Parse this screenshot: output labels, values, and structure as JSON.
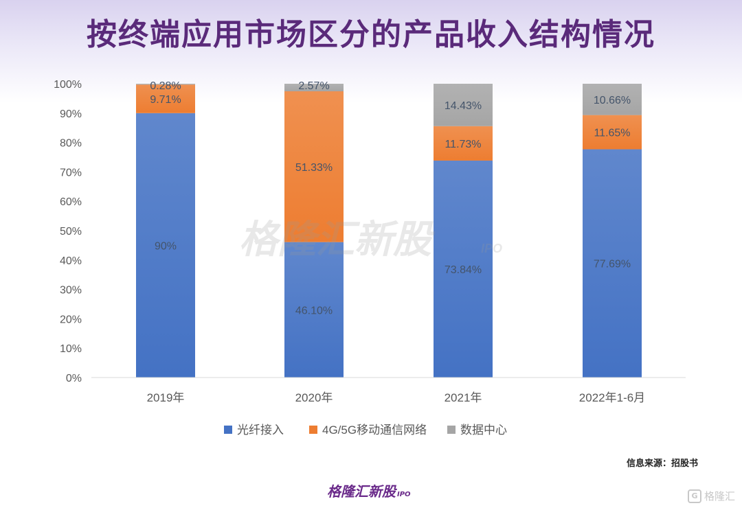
{
  "title": "按终端应用市场区分的产品收入结构情况",
  "source_text": "信息来源：招股书",
  "brand_text": "格隆汇新股",
  "brand_sub": "IPO",
  "corner_logo_text": "格隆汇",
  "corner_logo_badge": "G",
  "chart_data": {
    "type": "bar",
    "stacked": true,
    "categories": [
      "2019年",
      "2020年",
      "2021年",
      "2022年1-6月"
    ],
    "series": [
      {
        "name": "光纤接入",
        "color": "#4472c4",
        "values": [
          90,
          46.1,
          73.84,
          77.69
        ],
        "labels": [
          "90%",
          "46.10%",
          "73.84%",
          "77.69%"
        ]
      },
      {
        "name": "4G/5G移动通信网络",
        "color": "#ed7d31",
        "values": [
          9.71,
          51.33,
          11.73,
          11.65
        ],
        "labels": [
          "9.71%",
          "51.33%",
          "11.73%",
          "11.65%"
        ]
      },
      {
        "name": "数据中心",
        "color": "#a5a5a5",
        "values": [
          0.28,
          2.57,
          14.43,
          10.66
        ],
        "labels": [
          "0.28%",
          "2.57%",
          "14.43%",
          "10.66%"
        ]
      }
    ],
    "y_ticks": [
      "0%",
      "10%",
      "20%",
      "30%",
      "40%",
      "50%",
      "60%",
      "70%",
      "80%",
      "90%",
      "100%"
    ],
    "ylim": [
      0,
      100
    ],
    "legend_position": "bottom",
    "watermark": "格隆汇新股",
    "watermark_sub": "IPO"
  }
}
